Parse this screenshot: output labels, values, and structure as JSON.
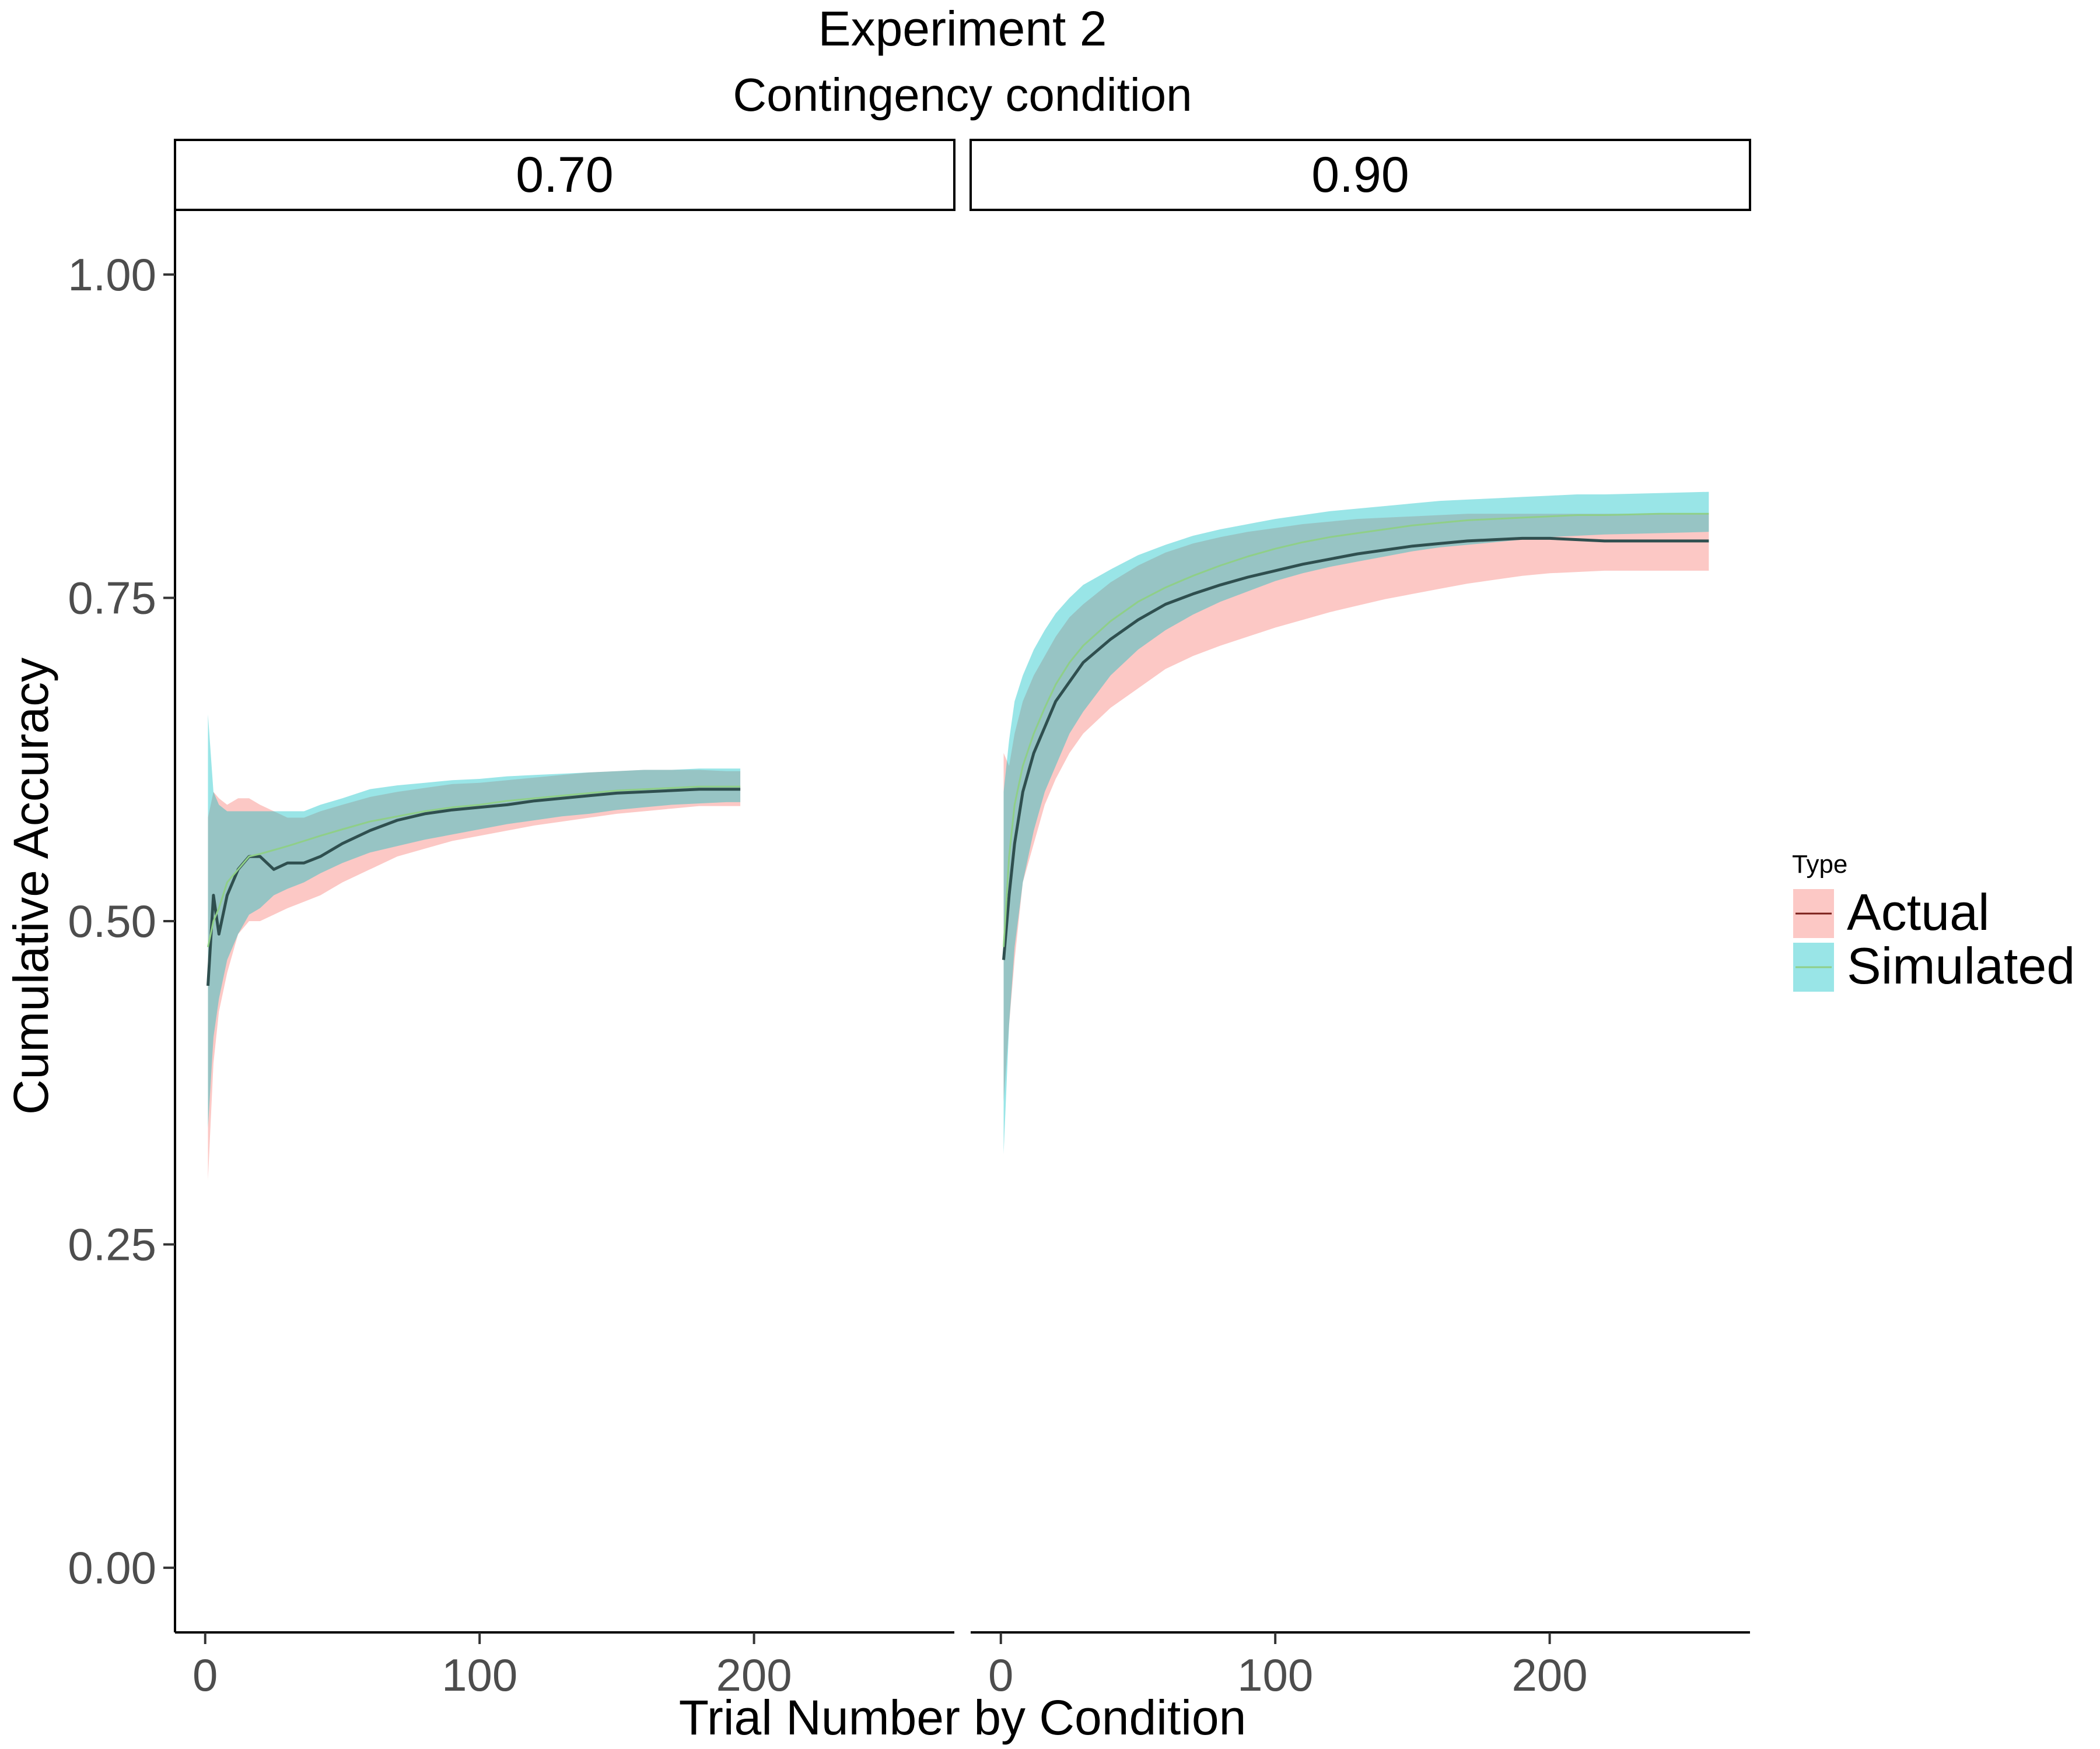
{
  "chart_data": {
    "type": "line",
    "title": "Experiment 2",
    "subtitle": "Contingency condition",
    "xlabel": "Trial Number by Condition",
    "ylabel": "Cumulative Accuracy",
    "ylim": [
      -0.05,
      1.05
    ],
    "yticks": [
      0.0,
      0.25,
      0.5,
      0.75,
      1.0
    ],
    "ytick_labels": [
      "0.00",
      "0.25",
      "0.50",
      "0.75",
      "1.00"
    ],
    "xticks": [
      0,
      100,
      200
    ],
    "xtick_labels": [
      "0",
      "100",
      "200"
    ],
    "xlim": [
      -11,
      273
    ],
    "grid": false,
    "legend": {
      "title": "Type",
      "position": "right",
      "entries": [
        {
          "name": "Actual",
          "fill": "#F8766D",
          "line": "#7a1f1a"
        },
        {
          "name": "Simulated",
          "fill": "#00BFC4",
          "line": "#8fcf88"
        }
      ]
    },
    "panels": [
      {
        "strip": "0.70",
        "series": [
          {
            "name": "Actual",
            "x": [
              1,
              3,
              5,
              8,
              12,
              16,
              20,
              25,
              30,
              36,
              42,
              50,
              60,
              70,
              80,
              90,
              100,
              110,
              120,
              130,
              140,
              150,
              160,
              170,
              180,
              190,
              195
            ],
            "y": [
              0.45,
              0.52,
              0.49,
              0.52,
              0.54,
              0.55,
              0.55,
              0.54,
              0.545,
              0.545,
              0.55,
              0.56,
              0.57,
              0.578,
              0.583,
              0.586,
              0.588,
              0.59,
              0.593,
              0.595,
              0.597,
              0.599,
              0.6,
              0.601,
              0.602,
              0.602,
              0.602
            ],
            "lower": [
              0.3,
              0.39,
              0.43,
              0.46,
              0.49,
              0.5,
              0.5,
              0.505,
              0.51,
              0.515,
              0.52,
              0.53,
              0.54,
              0.55,
              0.556,
              0.562,
              0.566,
              0.57,
              0.574,
              0.577,
              0.58,
              0.583,
              0.585,
              0.587,
              0.589,
              0.589,
              0.589
            ],
            "upper": [
              0.58,
              0.6,
              0.595,
              0.59,
              0.595,
              0.595,
              0.59,
              0.585,
              0.58,
              0.58,
              0.585,
              0.59,
              0.596,
              0.6,
              0.603,
              0.606,
              0.607,
              0.609,
              0.611,
              0.613,
              0.615,
              0.616,
              0.617,
              0.617,
              0.617,
              0.616,
              0.616
            ]
          },
          {
            "name": "Simulated",
            "x": [
              1,
              3,
              5,
              8,
              12,
              16,
              20,
              25,
              30,
              36,
              42,
              50,
              60,
              70,
              80,
              90,
              100,
              110,
              120,
              130,
              140,
              150,
              160,
              170,
              180,
              190,
              195
            ],
            "y": [
              0.48,
              0.5,
              0.51,
              0.53,
              0.54,
              0.55,
              0.552,
              0.555,
              0.558,
              0.562,
              0.566,
              0.571,
              0.577,
              0.581,
              0.585,
              0.588,
              0.59,
              0.593,
              0.595,
              0.597,
              0.599,
              0.601,
              0.602,
              0.603,
              0.604,
              0.604,
              0.604
            ],
            "lower": [
              0.34,
              0.41,
              0.44,
              0.47,
              0.49,
              0.505,
              0.51,
              0.52,
              0.525,
              0.53,
              0.537,
              0.545,
              0.553,
              0.558,
              0.563,
              0.567,
              0.571,
              0.575,
              0.578,
              0.581,
              0.583,
              0.586,
              0.588,
              0.59,
              0.591,
              0.592,
              0.592
            ],
            "upper": [
              0.66,
              0.6,
              0.59,
              0.585,
              0.585,
              0.585,
              0.585,
              0.585,
              0.585,
              0.585,
              0.59,
              0.595,
              0.602,
              0.605,
              0.607,
              0.609,
              0.61,
              0.612,
              0.613,
              0.614,
              0.615,
              0.616,
              0.617,
              0.617,
              0.618,
              0.618,
              0.618
            ]
          }
        ]
      },
      {
        "strip": "0.90",
        "series": [
          {
            "name": "Actual",
            "x": [
              1,
              3,
              5,
              8,
              12,
              16,
              20,
              25,
              30,
              40,
              50,
              60,
              70,
              80,
              90,
              100,
              110,
              120,
              130,
              140,
              150,
              160,
              170,
              180,
              190,
              200,
              210,
              220,
              240,
              258
            ],
            "y": [
              0.47,
              0.52,
              0.56,
              0.6,
              0.63,
              0.65,
              0.67,
              0.685,
              0.7,
              0.718,
              0.733,
              0.745,
              0.753,
              0.76,
              0.766,
              0.771,
              0.776,
              0.78,
              0.784,
              0.787,
              0.79,
              0.792,
              0.794,
              0.795,
              0.796,
              0.796,
              0.795,
              0.794,
              0.794,
              0.794
            ],
            "lower": [
              0.36,
              0.42,
              0.47,
              0.53,
              0.56,
              0.59,
              0.61,
              0.63,
              0.645,
              0.665,
              0.68,
              0.695,
              0.705,
              0.713,
              0.72,
              0.727,
              0.733,
              0.739,
              0.744,
              0.749,
              0.753,
              0.757,
              0.761,
              0.764,
              0.767,
              0.769,
              0.77,
              0.771,
              0.771,
              0.771
            ],
            "upper": [
              0.63,
              0.62,
              0.645,
              0.67,
              0.69,
              0.705,
              0.72,
              0.735,
              0.745,
              0.762,
              0.775,
              0.785,
              0.792,
              0.797,
              0.801,
              0.804,
              0.807,
              0.809,
              0.811,
              0.812,
              0.813,
              0.814,
              0.815,
              0.815,
              0.815,
              0.815,
              0.815,
              0.815,
              0.815,
              0.815
            ]
          },
          {
            "name": "Simulated",
            "x": [
              1,
              3,
              5,
              8,
              12,
              16,
              20,
              25,
              30,
              40,
              50,
              60,
              70,
              80,
              90,
              100,
              110,
              120,
              130,
              140,
              150,
              160,
              170,
              180,
              190,
              200,
              210,
              220,
              240,
              258
            ],
            "y": [
              0.48,
              0.55,
              0.59,
              0.62,
              0.645,
              0.665,
              0.683,
              0.7,
              0.713,
              0.732,
              0.747,
              0.758,
              0.767,
              0.775,
              0.782,
              0.788,
              0.793,
              0.797,
              0.8,
              0.803,
              0.806,
              0.808,
              0.81,
              0.811,
              0.812,
              0.813,
              0.814,
              0.814,
              0.815,
              0.815
            ],
            "lower": [
              0.32,
              0.42,
              0.48,
              0.53,
              0.57,
              0.6,
              0.62,
              0.645,
              0.662,
              0.69,
              0.71,
              0.725,
              0.737,
              0.747,
              0.755,
              0.763,
              0.769,
              0.774,
              0.778,
              0.782,
              0.786,
              0.789,
              0.791,
              0.793,
              0.795,
              0.797,
              0.798,
              0.799,
              0.8,
              0.801
            ],
            "upper": [
              0.6,
              0.64,
              0.67,
              0.69,
              0.71,
              0.725,
              0.738,
              0.75,
              0.76,
              0.772,
              0.783,
              0.791,
              0.798,
              0.803,
              0.807,
              0.811,
              0.814,
              0.817,
              0.819,
              0.821,
              0.823,
              0.825,
              0.826,
              0.827,
              0.828,
              0.829,
              0.83,
              0.83,
              0.831,
              0.832
            ]
          }
        ]
      }
    ]
  }
}
